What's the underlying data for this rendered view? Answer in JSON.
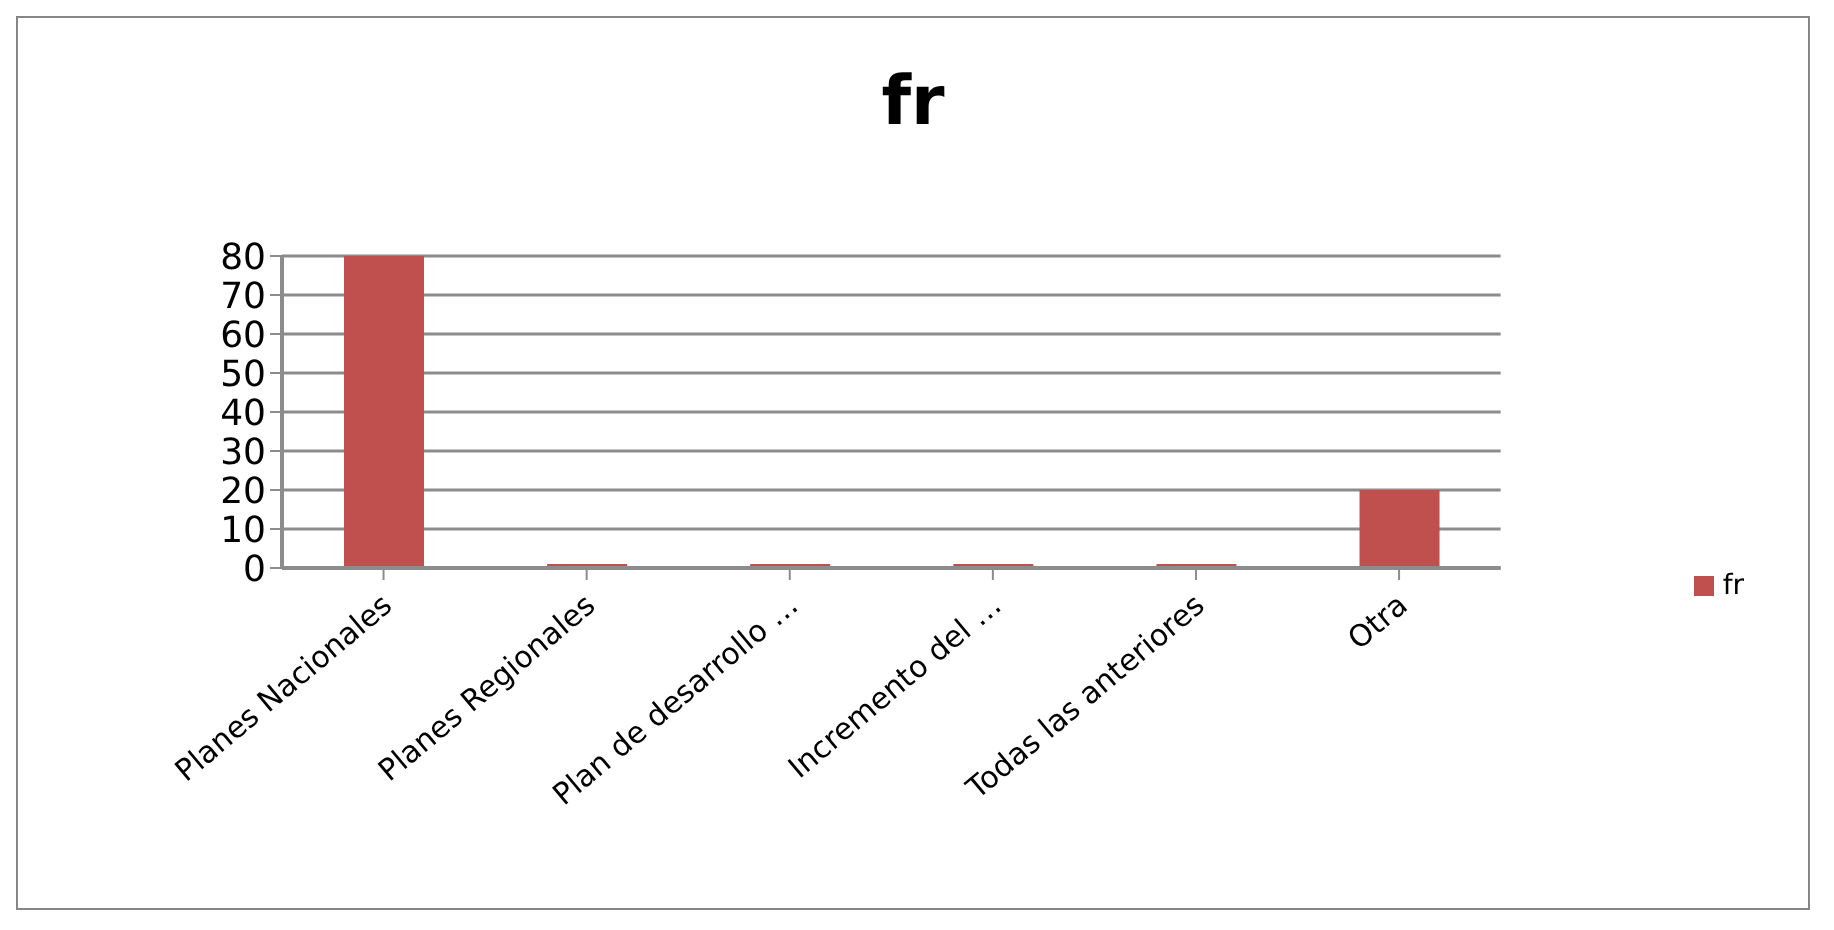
{
  "chart_data": {
    "type": "bar",
    "title": "fr",
    "categories": [
      "Planes Nacionales",
      "Planes Regionales",
      "Plan de desarrollo …",
      "Incremento del …",
      "Todas las anteriores",
      "Otra"
    ],
    "series": [
      {
        "name": "fr",
        "color": "#c0504d",
        "values": [
          80,
          0,
          0,
          0,
          0,
          20
        ]
      }
    ],
    "ylim": [
      0,
      80
    ],
    "yticks": [
      0,
      10,
      20,
      30,
      40,
      50,
      60,
      70,
      80
    ],
    "grid": "y",
    "legend": "right"
  }
}
